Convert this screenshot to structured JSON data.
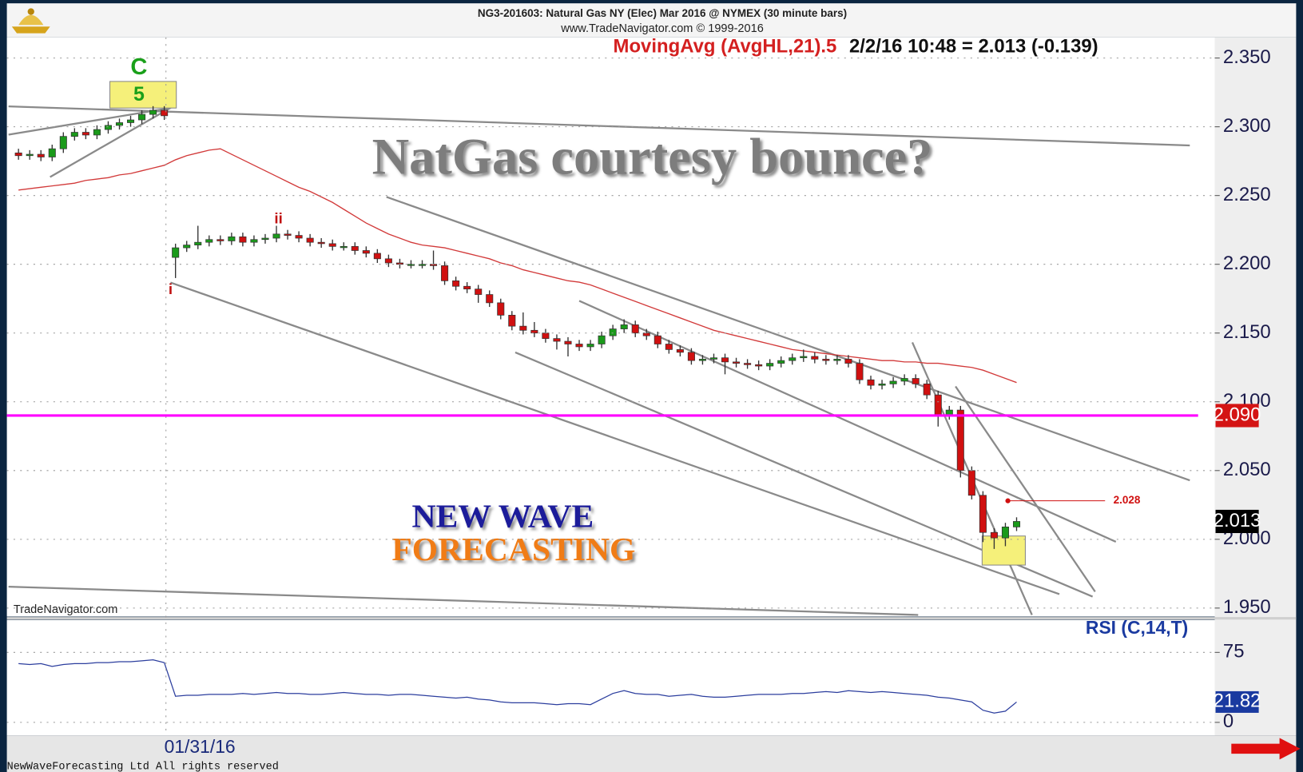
{
  "header": {
    "line1": "NG3-201603:  Natural Gas NY (Elec) Mar 2016 @ NYMEX  (30 minute bars)",
    "line2": "www.TradeNavigator.com © 1999-2016"
  },
  "chart_data": [
    {
      "type": "candlestick",
      "title": "NatGas courtesy bounce?",
      "categories": [
        null,
        null,
        null,
        null,
        null,
        null,
        null,
        null,
        null,
        null,
        null,
        null,
        null,
        "01/31/16",
        null,
        null,
        null,
        null,
        null,
        null,
        null,
        null,
        null,
        null,
        null,
        null,
        null,
        null,
        null,
        null,
        null,
        null,
        null,
        null,
        null,
        null,
        null,
        null,
        null,
        null,
        null,
        null,
        null,
        null,
        null,
        null,
        null,
        null,
        null,
        null,
        null,
        null,
        null,
        null,
        null,
        null,
        null,
        null,
        null,
        null,
        null,
        null,
        null,
        null,
        null,
        null,
        null,
        null,
        null,
        null,
        null,
        null,
        null,
        null,
        null,
        null,
        null,
        null,
        null,
        null,
        null,
        null,
        null,
        null,
        null,
        null,
        null,
        null,
        null,
        null
      ],
      "ohlc": [
        [
          2.281,
          2.284,
          2.276,
          2.279
        ],
        [
          2.279,
          2.283,
          2.276,
          2.28
        ],
        [
          2.28,
          2.283,
          2.275,
          2.278
        ],
        [
          2.278,
          2.287,
          2.275,
          2.284
        ],
        [
          2.284,
          2.296,
          2.281,
          2.293
        ],
        [
          2.293,
          2.299,
          2.29,
          2.296
        ],
        [
          2.296,
          2.299,
          2.291,
          2.294
        ],
        [
          2.294,
          2.301,
          2.291,
          2.298
        ],
        [
          2.298,
          2.304,
          2.295,
          2.301
        ],
        [
          2.301,
          2.306,
          2.298,
          2.303
        ],
        [
          2.303,
          2.308,
          2.3,
          2.305
        ],
        [
          2.305,
          2.312,
          2.302,
          2.309
        ],
        [
          2.309,
          2.315,
          2.306,
          2.312
        ],
        [
          2.312,
          2.315,
          2.305,
          2.308
        ],
        [
          2.205,
          2.215,
          2.19,
          2.212
        ],
        [
          2.212,
          2.217,
          2.209,
          2.214
        ],
        [
          2.214,
          2.228,
          2.211,
          2.216
        ],
        [
          2.216,
          2.221,
          2.213,
          2.218
        ],
        [
          2.218,
          2.221,
          2.214,
          2.217
        ],
        [
          2.217,
          2.223,
          2.214,
          2.22
        ],
        [
          2.22,
          2.223,
          2.213,
          2.216
        ],
        [
          2.216,
          2.221,
          2.213,
          2.218
        ],
        [
          2.218,
          2.222,
          2.215,
          2.219
        ],
        [
          2.219,
          2.228,
          2.216,
          2.222
        ],
        [
          2.222,
          2.225,
          2.218,
          2.221
        ],
        [
          2.221,
          2.224,
          2.216,
          2.219
        ],
        [
          2.219,
          2.222,
          2.213,
          2.216
        ],
        [
          2.216,
          2.219,
          2.212,
          2.215
        ],
        [
          2.215,
          2.218,
          2.21,
          2.213
        ],
        [
          2.213,
          2.216,
          2.21,
          2.213
        ],
        [
          2.213,
          2.216,
          2.207,
          2.21
        ],
        [
          2.21,
          2.213,
          2.205,
          2.208
        ],
        [
          2.208,
          2.211,
          2.201,
          2.204
        ],
        [
          2.204,
          2.207,
          2.198,
          2.201
        ],
        [
          2.201,
          2.204,
          2.197,
          2.2
        ],
        [
          2.2,
          2.203,
          2.197,
          2.2
        ],
        [
          2.2,
          2.203,
          2.197,
          2.2
        ],
        [
          2.2,
          2.21,
          2.196,
          2.199
        ],
        [
          2.199,
          2.202,
          2.185,
          2.188
        ],
        [
          2.188,
          2.191,
          2.181,
          2.184
        ],
        [
          2.184,
          2.187,
          2.179,
          2.182
        ],
        [
          2.182,
          2.185,
          2.172,
          2.178
        ],
        [
          2.178,
          2.181,
          2.169,
          2.172
        ],
        [
          2.172,
          2.175,
          2.16,
          2.163
        ],
        [
          2.163,
          2.166,
          2.152,
          2.155
        ],
        [
          2.155,
          2.165,
          2.149,
          2.152
        ],
        [
          2.152,
          2.158,
          2.147,
          2.15
        ],
        [
          2.15,
          2.153,
          2.143,
          2.146
        ],
        [
          2.146,
          2.149,
          2.138,
          2.144
        ],
        [
          2.144,
          2.147,
          2.133,
          2.142
        ],
        [
          2.142,
          2.145,
          2.137,
          2.14
        ],
        [
          2.14,
          2.145,
          2.137,
          2.142
        ],
        [
          2.142,
          2.151,
          2.139,
          2.148
        ],
        [
          2.148,
          2.156,
          2.145,
          2.153
        ],
        [
          2.153,
          2.16,
          2.15,
          2.156
        ],
        [
          2.156,
          2.159,
          2.147,
          2.15
        ],
        [
          2.15,
          2.153,
          2.145,
          2.148
        ],
        [
          2.148,
          2.151,
          2.139,
          2.142
        ],
        [
          2.142,
          2.145,
          2.135,
          2.138
        ],
        [
          2.138,
          2.141,
          2.133,
          2.136
        ],
        [
          2.136,
          2.139,
          2.127,
          2.13
        ],
        [
          2.13,
          2.134,
          2.127,
          2.131
        ],
        [
          2.131,
          2.135,
          2.128,
          2.132
        ],
        [
          2.132,
          2.135,
          2.12,
          2.129
        ],
        [
          2.129,
          2.132,
          2.125,
          2.128
        ],
        [
          2.128,
          2.131,
          2.124,
          2.127
        ],
        [
          2.127,
          2.13,
          2.123,
          2.126
        ],
        [
          2.126,
          2.131,
          2.123,
          2.128
        ],
        [
          2.128,
          2.133,
          2.125,
          2.13
        ],
        [
          2.13,
          2.135,
          2.127,
          2.132
        ],
        [
          2.132,
          2.138,
          2.129,
          2.133
        ],
        [
          2.133,
          2.136,
          2.128,
          2.131
        ],
        [
          2.131,
          2.134,
          2.127,
          2.13
        ],
        [
          2.13,
          2.134,
          2.127,
          2.131
        ],
        [
          2.131,
          2.134,
          2.125,
          2.128
        ],
        [
          2.128,
          2.131,
          2.113,
          2.116
        ],
        [
          2.116,
          2.119,
          2.109,
          2.112
        ],
        [
          2.112,
          2.116,
          2.109,
          2.113
        ],
        [
          2.113,
          2.118,
          2.11,
          2.115
        ],
        [
          2.115,
          2.12,
          2.112,
          2.117
        ],
        [
          2.117,
          2.12,
          2.11,
          2.113
        ],
        [
          2.113,
          2.116,
          2.102,
          2.105
        ],
        [
          2.105,
          2.108,
          2.082,
          2.09
        ],
        [
          2.09,
          2.097,
          2.087,
          2.094
        ],
        [
          2.094,
          2.097,
          2.045,
          2.05
        ],
        [
          2.05,
          2.053,
          2.029,
          2.032
        ],
        [
          2.032,
          2.035,
          1.998,
          2.005
        ],
        [
          2.005,
          2.008,
          1.993,
          2.001
        ],
        [
          2.001,
          2.012,
          1.995,
          2.009
        ],
        [
          2.009,
          2.016,
          2.006,
          2.013
        ]
      ],
      "colors": {
        "up": "#1a9a1a",
        "down": "#d01010"
      },
      "series": [
        {
          "name": "MovingAvg (AvgHL,21).5",
          "color": "#d23a3a",
          "values": [
            2.254,
            2.255,
            2.256,
            2.257,
            2.258,
            2.259,
            2.261,
            2.262,
            2.263,
            2.265,
            2.266,
            2.268,
            2.27,
            2.272,
            2.276,
            2.279,
            2.281,
            2.283,
            2.284,
            2.28,
            2.276,
            2.272,
            2.268,
            2.264,
            2.26,
            2.256,
            2.253,
            2.249,
            2.245,
            2.24,
            2.235,
            2.23,
            2.226,
            2.222,
            2.219,
            2.216,
            2.214,
            2.213,
            2.212,
            2.21,
            2.208,
            2.206,
            2.204,
            2.201,
            2.199,
            2.196,
            2.194,
            2.192,
            2.19,
            2.188,
            2.187,
            2.185,
            2.182,
            2.179,
            2.176,
            2.173,
            2.17,
            2.167,
            2.164,
            2.161,
            2.158,
            2.155,
            2.152,
            2.15,
            2.148,
            2.146,
            2.144,
            2.142,
            2.14,
            2.138,
            2.137,
            2.136,
            2.135,
            2.134,
            2.133,
            2.132,
            2.131,
            2.13,
            2.13,
            2.129,
            2.129,
            2.128,
            2.128,
            2.127,
            2.126,
            2.125,
            2.123,
            2.12,
            2.117,
            2.114
          ]
        }
      ],
      "status": "2/2/16 10:48 = 2.013 (-0.139)",
      "ylim": [
        1.945,
        2.365
      ],
      "yticks": [
        {
          "value": 1.95,
          "label": "1.950"
        },
        {
          "value": 2.0,
          "label": "2.000"
        },
        {
          "value": 2.05,
          "label": "2.050"
        },
        {
          "value": 2.1,
          "label": "2.100"
        },
        {
          "value": 2.15,
          "label": "2.150"
        },
        {
          "value": 2.2,
          "label": "2.200"
        },
        {
          "value": 2.25,
          "label": "2.250"
        },
        {
          "value": 2.3,
          "label": "2.300"
        },
        {
          "value": 2.35,
          "label": "2.350"
        }
      ],
      "grid": true,
      "last": 2.013,
      "hline": {
        "value": 2.09,
        "label": "2.090",
        "color": "#ff00ff"
      },
      "level": 2.028,
      "wave_labels": [
        "C",
        "5",
        "ii",
        "i"
      ],
      "watermark": "TradeNavigator.com",
      "brand": [
        "NEW WAVE",
        "FORECASTING"
      ]
    },
    {
      "type": "line",
      "series": [
        {
          "name": "RSI (C,14,T)",
          "color": "#2c3e9e",
          "values": [
            63,
            62,
            63,
            60,
            62,
            63,
            63,
            64,
            64,
            65,
            65,
            66,
            67,
            64,
            28,
            29,
            29,
            30,
            30,
            30,
            31,
            30,
            31,
            32,
            31,
            31,
            30,
            30,
            31,
            32,
            31,
            30,
            30,
            29,
            30,
            30,
            29,
            28,
            27,
            26,
            27,
            25,
            24,
            22,
            21,
            21,
            21,
            20,
            19,
            20,
            20,
            19,
            25,
            31,
            34,
            31,
            30,
            30,
            28,
            29,
            30,
            28,
            27,
            27,
            28,
            29,
            30,
            30,
            30,
            31,
            31,
            32,
            33,
            32,
            34,
            33,
            32,
            33,
            32,
            31,
            30,
            29,
            27,
            26,
            24,
            22,
            13,
            10,
            12,
            21.82
          ]
        }
      ],
      "ylim": [
        -14,
        108
      ],
      "yticks": [
        0,
        75
      ],
      "grid": true,
      "last": 21.82
    }
  ],
  "footer": "NewWaveForecasting Ltd All rights reserved"
}
